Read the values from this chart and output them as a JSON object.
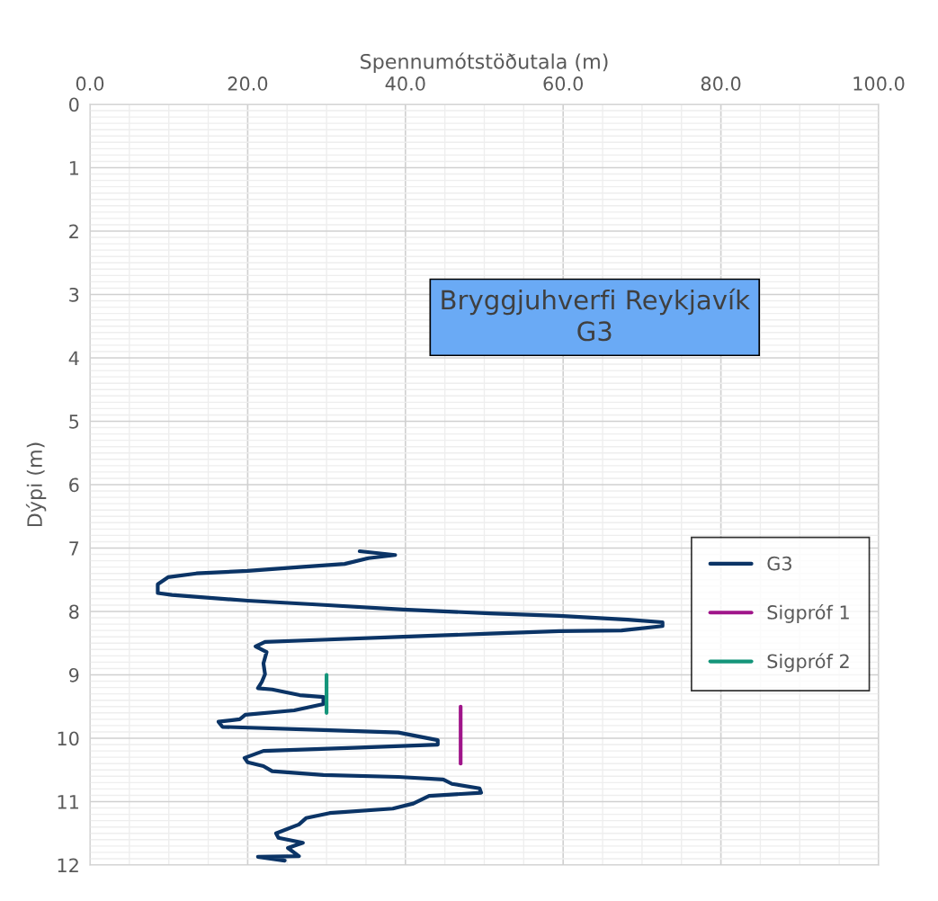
{
  "chart_data": {
    "type": "line",
    "title": "Bryggjuhverfi Reykjavík\nG3",
    "xlabel": "Spennumótstöðutala (m)",
    "ylabel": "Dýpi (m)",
    "xlim": [
      0,
      100
    ],
    "xticks": [
      {
        "value": 0,
        "label": "0.0"
      },
      {
        "value": 20,
        "label": "20.0"
      },
      {
        "value": 40,
        "label": "40.0"
      },
      {
        "value": 60,
        "label": "60.0"
      },
      {
        "value": 80,
        "label": "80.0"
      },
      {
        "value": 100,
        "label": "100.0"
      }
    ],
    "ylim": [
      12,
      0
    ],
    "yticks": [
      0,
      1,
      2,
      3,
      4,
      5,
      6,
      7,
      8,
      9,
      10,
      11,
      12
    ],
    "grid": true,
    "legend": "right",
    "marker": "none",
    "line_style": "solid",
    "series": [
      {
        "name": "G3",
        "color": "#0b3466",
        "x": [
          34.2,
          38.7,
          35.3,
          32.3,
          26.6,
          20.0,
          13.5,
          9.9,
          8.6,
          8.6,
          10.4,
          20.0,
          28.7,
          39.7,
          50.7,
          59.5,
          68.2,
          72.6,
          72.6,
          67.4,
          59.5,
          50.7,
          39.7,
          28.7,
          22.2,
          21.0,
          22.4,
          22.0,
          22.2,
          21.8,
          21.3,
          23.1,
          26.6,
          29.6,
          29.6,
          25.9,
          19.7,
          19.0,
          16.3,
          16.8,
          29.6,
          39.1,
          44.1,
          44.1,
          33.4,
          22.0,
          19.6,
          20.0,
          22.0,
          23.1,
          29.6,
          39.1,
          44.8,
          45.9,
          49.4,
          49.6,
          43.0,
          41.0,
          38.4,
          30.4,
          27.4,
          26.5,
          23.6,
          23.9,
          27.0,
          25.1,
          26.5,
          21.3,
          24.7
        ],
        "values": [
          7.05,
          7.11,
          7.16,
          7.25,
          7.3,
          7.36,
          7.4,
          7.46,
          7.57,
          7.71,
          7.74,
          7.83,
          7.89,
          7.97,
          8.03,
          8.07,
          8.13,
          8.17,
          8.23,
          8.3,
          8.31,
          8.35,
          8.4,
          8.45,
          8.48,
          8.55,
          8.64,
          8.82,
          8.99,
          9.11,
          9.21,
          9.23,
          9.32,
          9.35,
          9.46,
          9.56,
          9.63,
          9.7,
          9.74,
          9.82,
          9.87,
          9.91,
          10.03,
          10.1,
          10.15,
          10.2,
          10.31,
          10.38,
          10.44,
          10.52,
          10.58,
          10.61,
          10.65,
          10.72,
          10.79,
          10.86,
          10.91,
          11.03,
          11.11,
          11.18,
          11.26,
          11.36,
          11.5,
          11.57,
          11.65,
          11.73,
          11.86,
          11.87,
          11.93
        ]
      },
      {
        "name": "Sigpróf 1",
        "color": "#a0158a",
        "x": [
          47.0,
          47.0
        ],
        "values": [
          9.5,
          10.4
        ]
      },
      {
        "name": "Sigpróf 2",
        "color": "#14957a",
        "x": [
          30.0,
          30.0
        ],
        "values": [
          9.0,
          9.6
        ]
      }
    ]
  }
}
